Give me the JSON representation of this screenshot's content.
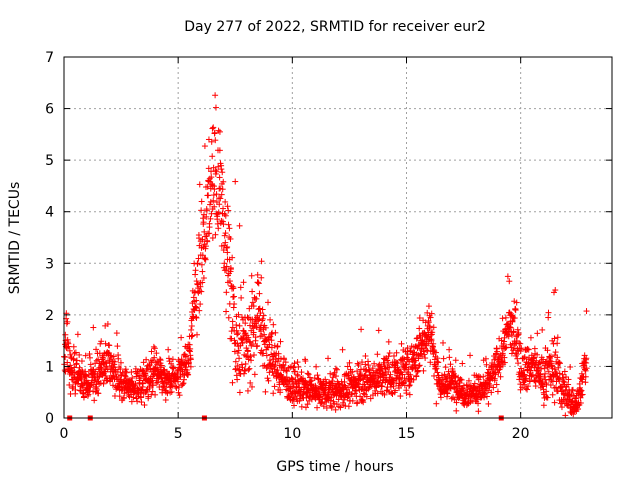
{
  "chart_data": {
    "type": "scatter",
    "title": "Day 277 of 2022, SRMTID for receiver eur2",
    "xlabel": "GPS time / hours",
    "ylabel": "SRMTID / TECUs",
    "xlim": [
      0,
      24
    ],
    "ylim": [
      0,
      7
    ],
    "xticks": [
      0,
      5,
      10,
      15,
      20
    ],
    "yticks": [
      0,
      1,
      2,
      3,
      4,
      5,
      6,
      7
    ],
    "grid": true,
    "marker": "plus",
    "color": "#ff0000",
    "series": [
      {
        "name": "SRMTID eur2",
        "profile": [
          [
            0.0,
            0.9,
            0.3
          ],
          [
            0.1,
            1.5,
            0.5
          ],
          [
            0.2,
            1.1,
            0.4
          ],
          [
            0.5,
            0.9,
            0.3
          ],
          [
            1.0,
            0.6,
            0.2
          ],
          [
            1.5,
            0.9,
            0.3
          ],
          [
            2.0,
            1.0,
            0.3
          ],
          [
            2.5,
            0.7,
            0.25
          ],
          [
            3.0,
            0.6,
            0.2
          ],
          [
            3.5,
            0.7,
            0.25
          ],
          [
            4.0,
            0.9,
            0.3
          ],
          [
            4.5,
            0.7,
            0.25
          ],
          [
            5.0,
            0.8,
            0.25
          ],
          [
            5.5,
            1.2,
            0.3
          ],
          [
            5.7,
            2.4,
            0.6
          ],
          [
            6.0,
            3.0,
            0.7
          ],
          [
            6.3,
            4.0,
            0.8
          ],
          [
            6.6,
            4.8,
            0.9
          ],
          [
            6.9,
            4.0,
            1.0
          ],
          [
            7.2,
            3.0,
            0.8
          ],
          [
            7.5,
            1.5,
            0.8
          ],
          [
            8.0,
            1.6,
            0.7
          ],
          [
            8.5,
            2.0,
            0.7
          ],
          [
            9.0,
            1.2,
            0.5
          ],
          [
            9.5,
            0.9,
            0.35
          ],
          [
            10.0,
            0.6,
            0.25
          ],
          [
            11.0,
            0.5,
            0.2
          ],
          [
            12.0,
            0.5,
            0.25
          ],
          [
            13.0,
            0.7,
            0.25
          ],
          [
            14.0,
            0.8,
            0.3
          ],
          [
            15.0,
            0.9,
            0.3
          ],
          [
            15.5,
            1.2,
            0.3
          ],
          [
            16.0,
            1.8,
            0.4
          ],
          [
            16.3,
            1.0,
            0.4
          ],
          [
            16.5,
            0.6,
            0.2
          ],
          [
            17.0,
            0.7,
            0.25
          ],
          [
            17.5,
            0.5,
            0.2
          ],
          [
            18.0,
            0.5,
            0.2
          ],
          [
            18.5,
            0.6,
            0.2
          ],
          [
            19.0,
            1.0,
            0.3
          ],
          [
            19.5,
            1.8,
            0.4
          ],
          [
            19.8,
            1.6,
            0.4
          ],
          [
            20.0,
            1.0,
            0.3
          ],
          [
            20.5,
            1.0,
            0.3
          ],
          [
            21.0,
            0.8,
            0.3
          ],
          [
            21.5,
            1.0,
            0.5
          ],
          [
            22.0,
            0.4,
            0.3
          ],
          [
            22.5,
            0.3,
            0.2
          ],
          [
            22.8,
            1.0,
            0.3
          ]
        ],
        "point_density_per_hour": 110,
        "x_end": 22.9
      }
    ],
    "zero_markers_x": [
      0.25,
      1.15,
      6.15,
      19.15
    ]
  }
}
